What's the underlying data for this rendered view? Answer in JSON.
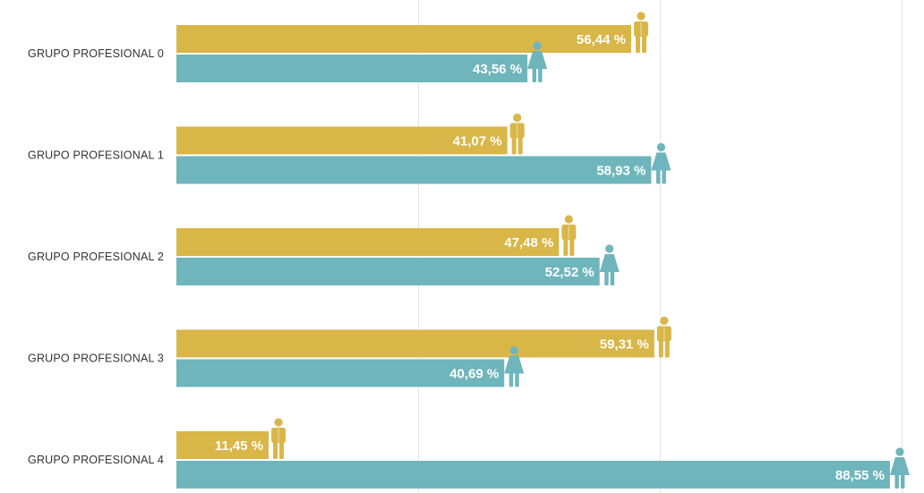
{
  "chart_data": {
    "type": "bar",
    "orientation": "horizontal",
    "categories": [
      "GRUPO PROFESIONAL 0",
      "GRUPO PROFESIONAL 1",
      "GRUPO PROFESIONAL 2",
      "GRUPO PROFESIONAL 3",
      "GRUPO PROFESIONAL 4"
    ],
    "series": [
      {
        "icon": "male-icon",
        "color": "#d9b648",
        "values": [
          56.44,
          41.07,
          47.48,
          59.31,
          11.45
        ],
        "labels": [
          "56,44 %",
          "41,07 %",
          "47,48 %",
          "59,31 %",
          "11,45 %"
        ]
      },
      {
        "icon": "female-icon",
        "color": "#6fb5bc",
        "values": [
          43.56,
          58.93,
          52.52,
          40.69,
          88.55
        ],
        "labels": [
          "43,56 %",
          "58,93 %",
          "52,52 %",
          "40,69 %",
          "88,55 %"
        ]
      }
    ],
    "xlim": [
      0,
      90
    ],
    "grid": true,
    "gridlines_at": [
      30,
      60,
      90
    ],
    "legend": "none"
  }
}
